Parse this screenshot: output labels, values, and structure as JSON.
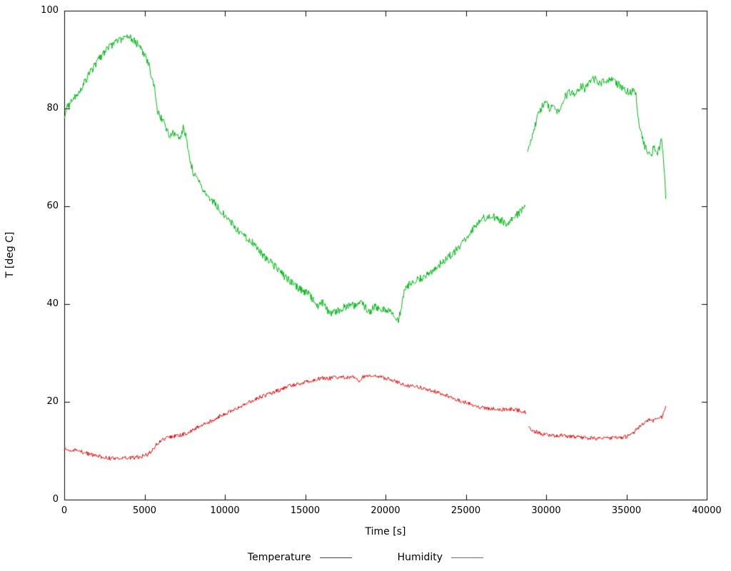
{
  "page": {
    "background": "#ffffff"
  },
  "chart_data": {
    "type": "line",
    "title": "",
    "xlabel": "Time [s]",
    "ylabel": "T [deg C]",
    "xlim": [
      0,
      40000
    ],
    "ylim": [
      0,
      100
    ],
    "xticks": [
      0,
      5000,
      10000,
      15000,
      20000,
      25000,
      30000,
      35000,
      40000
    ],
    "yticks": [
      0,
      20,
      40,
      60,
      80,
      100
    ],
    "grid": false,
    "legend_position": "bottom-center",
    "axis_color": "#000000",
    "series": [
      {
        "name": "Temperature",
        "color": "#dd0000",
        "noise": 0.4,
        "segments": [
          [
            [
              0,
              10.4
            ],
            [
              400,
              10.1
            ],
            [
              800,
              10.0
            ],
            [
              1200,
              9.7
            ],
            [
              1600,
              9.3
            ],
            [
              2000,
              9.0
            ],
            [
              2400,
              8.7
            ],
            [
              2800,
              8.5
            ],
            [
              3200,
              8.5
            ],
            [
              3600,
              8.5
            ],
            [
              4000,
              8.6
            ],
            [
              4400,
              8.6
            ],
            [
              4800,
              8.8
            ],
            [
              5200,
              9.3
            ],
            [
              5500,
              10.2
            ],
            [
              5800,
              11.5
            ],
            [
              6100,
              12.2
            ],
            [
              6400,
              12.6
            ],
            [
              6700,
              12.9
            ],
            [
              7000,
              13.1
            ],
            [
              7300,
              13.2
            ],
            [
              7600,
              13.6
            ],
            [
              8000,
              14.2
            ],
            [
              8400,
              15.0
            ],
            [
              8800,
              15.6
            ],
            [
              9200,
              16.2
            ],
            [
              9600,
              17.0
            ],
            [
              10000,
              17.6
            ],
            [
              10400,
              18.2
            ],
            [
              10800,
              18.8
            ],
            [
              11200,
              19.5
            ],
            [
              11600,
              20.1
            ],
            [
              12000,
              20.7
            ],
            [
              12400,
              21.2
            ],
            [
              12800,
              21.7
            ],
            [
              13200,
              22.2
            ],
            [
              13600,
              22.7
            ],
            [
              14000,
              23.2
            ],
            [
              14400,
              23.6
            ],
            [
              14800,
              23.9
            ],
            [
              15200,
              24.2
            ],
            [
              15600,
              24.5
            ],
            [
              16000,
              24.9
            ],
            [
              16400,
              24.7
            ],
            [
              16800,
              25.0
            ],
            [
              17200,
              25.1
            ],
            [
              17600,
              24.9
            ],
            [
              18000,
              25.2
            ],
            [
              18350,
              23.9
            ],
            [
              18600,
              25.2
            ],
            [
              19000,
              25.1
            ],
            [
              19400,
              25.3
            ],
            [
              19800,
              25.0
            ],
            [
              20200,
              24.7
            ],
            [
              20600,
              24.2
            ],
            [
              21000,
              23.7
            ],
            [
              21400,
              23.3
            ],
            [
              21800,
              23.1
            ],
            [
              22200,
              22.9
            ],
            [
              22600,
              22.6
            ],
            [
              23000,
              22.2
            ],
            [
              23400,
              21.8
            ],
            [
              23800,
              21.3
            ],
            [
              24200,
              20.8
            ],
            [
              24600,
              20.3
            ],
            [
              25000,
              19.9
            ],
            [
              25400,
              19.4
            ],
            [
              25800,
              19.0
            ],
            [
              26200,
              18.7
            ],
            [
              26600,
              18.5
            ],
            [
              27000,
              18.5
            ],
            [
              27400,
              18.4
            ],
            [
              27800,
              18.5
            ],
            [
              28200,
              18.3
            ],
            [
              28600,
              18.0
            ],
            [
              28750,
              17.8
            ]
          ],
          [
            [
              28900,
              14.6
            ],
            [
              29200,
              14.1
            ],
            [
              29500,
              13.7
            ],
            [
              29800,
              13.4
            ],
            [
              30100,
              13.2
            ],
            [
              30400,
              13.2
            ],
            [
              30700,
              13.1
            ],
            [
              31000,
              13.2
            ],
            [
              31300,
              13.0
            ],
            [
              31600,
              13.0
            ],
            [
              31900,
              12.8
            ],
            [
              32200,
              12.7
            ],
            [
              32500,
              12.6
            ],
            [
              32800,
              12.6
            ],
            [
              33100,
              12.5
            ],
            [
              33400,
              12.5
            ],
            [
              33700,
              12.6
            ],
            [
              34000,
              12.5
            ],
            [
              34300,
              12.6
            ],
            [
              34600,
              12.7
            ],
            [
              34900,
              12.8
            ],
            [
              35200,
              13.1
            ],
            [
              35500,
              13.9
            ],
            [
              35800,
              14.9
            ],
            [
              36100,
              15.8
            ],
            [
              36400,
              16.3
            ],
            [
              36700,
              16.2
            ],
            [
              37000,
              16.5
            ],
            [
              37200,
              16.9
            ],
            [
              37350,
              18.2
            ],
            [
              37450,
              19.2
            ]
          ]
        ]
      },
      {
        "name": "Humidity",
        "color": "#00b418",
        "noise": 0.8,
        "segments": [
          [
            [
              0,
              78.5
            ],
            [
              200,
              80.3
            ],
            [
              500,
              81.8
            ],
            [
              800,
              83.0
            ],
            [
              1100,
              84.6
            ],
            [
              1400,
              86.2
            ],
            [
              1700,
              87.8
            ],
            [
              2000,
              89.3
            ],
            [
              2300,
              90.6
            ],
            [
              2600,
              91.8
            ],
            [
              2900,
              92.8
            ],
            [
              3200,
              93.5
            ],
            [
              3500,
              94.1
            ],
            [
              3800,
              94.4
            ],
            [
              4100,
              94.4
            ],
            [
              4400,
              93.7
            ],
            [
              4700,
              92.6
            ],
            [
              5000,
              90.8
            ],
            [
              5300,
              88.6
            ],
            [
              5600,
              84.5
            ],
            [
              5800,
              79.5
            ],
            [
              6000,
              78.2
            ],
            [
              6200,
              77.0
            ],
            [
              6400,
              75.6
            ],
            [
              6600,
              74.2
            ],
            [
              6800,
              75.2
            ],
            [
              7000,
              74.2
            ],
            [
              7200,
              73.6
            ],
            [
              7400,
              76.0
            ],
            [
              7600,
              74.0
            ],
            [
              7800,
              70.2
            ],
            [
              8000,
              67.2
            ],
            [
              8300,
              65.2
            ],
            [
              8600,
              63.8
            ],
            [
              8900,
              62.6
            ],
            [
              9200,
              61.2
            ],
            [
              9500,
              60.0
            ],
            [
              9800,
              58.8
            ],
            [
              10100,
              57.6
            ],
            [
              10400,
              56.6
            ],
            [
              10700,
              55.6
            ],
            [
              11000,
              54.6
            ],
            [
              11300,
              53.7
            ],
            [
              11600,
              52.8
            ],
            [
              11900,
              52.2
            ],
            [
              12200,
              50.6
            ],
            [
              12500,
              49.6
            ],
            [
              12800,
              48.7
            ],
            [
              13100,
              47.7
            ],
            [
              13400,
              46.7
            ],
            [
              13700,
              45.7
            ],
            [
              14000,
              44.8
            ],
            [
              14300,
              44.1
            ],
            [
              14600,
              43.2
            ],
            [
              14900,
              42.6
            ],
            [
              15200,
              42.0
            ],
            [
              15500,
              40.8
            ],
            [
              15800,
              39.6
            ],
            [
              16100,
              40.3
            ],
            [
              16400,
              38.6
            ],
            [
              16700,
              38.0
            ],
            [
              17000,
              38.6
            ],
            [
              17300,
              39.1
            ],
            [
              17600,
              39.6
            ],
            [
              17900,
              40.1
            ],
            [
              18200,
              39.4
            ],
            [
              18500,
              40.4
            ],
            [
              18800,
              39.0
            ],
            [
              19100,
              38.6
            ],
            [
              19400,
              39.6
            ],
            [
              19700,
              38.6
            ],
            [
              20000,
              39.0
            ],
            [
              20300,
              38.4
            ],
            [
              20600,
              37.4
            ],
            [
              20800,
              36.9
            ],
            [
              21000,
              39.5
            ],
            [
              21200,
              43.4
            ],
            [
              21500,
              44.0
            ],
            [
              21800,
              44.6
            ],
            [
              22100,
              45.1
            ],
            [
              22400,
              45.7
            ],
            [
              22700,
              46.4
            ],
            [
              23000,
              47.1
            ],
            [
              23300,
              47.9
            ],
            [
              23600,
              48.6
            ],
            [
              23900,
              49.5
            ],
            [
              24200,
              50.4
            ],
            [
              24500,
              51.4
            ],
            [
              24800,
              52.4
            ],
            [
              25100,
              53.5
            ],
            [
              25400,
              54.9
            ],
            [
              25700,
              56.4
            ],
            [
              26000,
              57.4
            ],
            [
              26300,
              57.9
            ],
            [
              26600,
              58.0
            ],
            [
              26900,
              57.6
            ],
            [
              27200,
              57.1
            ],
            [
              27500,
              56.6
            ],
            [
              27800,
              57.1
            ],
            [
              28100,
              58.0
            ],
            [
              28400,
              59.0
            ],
            [
              28700,
              60.1
            ]
          ],
          [
            [
              28850,
              71.2
            ],
            [
              29000,
              73.0
            ],
            [
              29200,
              75.2
            ],
            [
              29400,
              77.6
            ],
            [
              29600,
              79.6
            ],
            [
              29800,
              80.6
            ],
            [
              30000,
              81.1
            ],
            [
              30200,
              80.1
            ],
            [
              30400,
              80.6
            ],
            [
              30600,
              79.1
            ],
            [
              30800,
              79.6
            ],
            [
              31000,
              81.6
            ],
            [
              31200,
              82.6
            ],
            [
              31400,
              83.1
            ],
            [
              31600,
              83.5
            ],
            [
              31800,
              83.1
            ],
            [
              32000,
              84.1
            ],
            [
              32200,
              84.6
            ],
            [
              32400,
              84.1
            ],
            [
              32600,
              85.1
            ],
            [
              32800,
              85.6
            ],
            [
              33000,
              86.0
            ],
            [
              33200,
              85.6
            ],
            [
              33400,
              85.1
            ],
            [
              33600,
              85.6
            ],
            [
              33800,
              85.6
            ],
            [
              34000,
              86.0
            ],
            [
              34200,
              86.0
            ],
            [
              34400,
              85.1
            ],
            [
              34600,
              84.6
            ],
            [
              34800,
              84.1
            ],
            [
              35000,
              83.6
            ],
            [
              35200,
              83.1
            ],
            [
              35400,
              83.6
            ],
            [
              35600,
              82.6
            ],
            [
              35750,
              78.0
            ],
            [
              35900,
              75.0
            ],
            [
              36100,
              72.6
            ],
            [
              36300,
              71.1
            ],
            [
              36500,
              70.1
            ],
            [
              36700,
              72.1
            ],
            [
              36900,
              70.6
            ],
            [
              37100,
              72.6
            ],
            [
              37200,
              73.4
            ],
            [
              37300,
              70.0
            ],
            [
              37450,
              62.2
            ]
          ]
        ]
      }
    ]
  }
}
